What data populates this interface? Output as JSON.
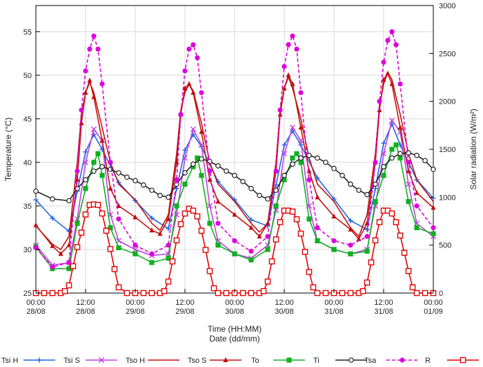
{
  "chart_data": {
    "type": "line",
    "title": "",
    "xlabel": "Time (HH:MM)",
    "xlabel2": "Date (dd/mm)",
    "ylabel": "Temperature (°C)",
    "y2label": "Solar radiation (W/m²)",
    "ylim": [
      25,
      58
    ],
    "y2lim": [
      0,
      3000
    ],
    "xlim": [
      0,
      96
    ],
    "yticks": [
      "25",
      "30",
      "35",
      "40",
      "45",
      "50",
      "55"
    ],
    "y2ticks": [
      "0",
      "500",
      "1000",
      "1500",
      "2000",
      "2500",
      "3000"
    ],
    "xticks": [
      {
        "time": "00:00",
        "date": "28/08"
      },
      {
        "time": "12:00",
        "date": "28/08"
      },
      {
        "time": "00:00",
        "date": "29/08"
      },
      {
        "time": "12:00",
        "date": "29/08"
      },
      {
        "time": "00:00",
        "date": "30/08"
      },
      {
        "time": "12:00",
        "date": "30/08"
      },
      {
        "time": "00:00",
        "date": "31/08"
      },
      {
        "time": "12:00",
        "date": "31/08"
      },
      {
        "time": "00:00",
        "date": "01/09"
      }
    ],
    "legend_position": "bottom",
    "series": [
      {
        "name": "Tsi H",
        "color": "#1e64e6",
        "marker": "plus",
        "axis": "left",
        "x": [
          0,
          4,
          8,
          10,
          12,
          14,
          16,
          20,
          24,
          28,
          32,
          34,
          36,
          38,
          40,
          44,
          48,
          52,
          56,
          58,
          60,
          62,
          64,
          68,
          72,
          76,
          80,
          82,
          84,
          86,
          88,
          92,
          96
        ],
        "y": [
          35.7,
          33.6,
          32.1,
          36.7,
          41.2,
          43.2,
          41.5,
          37.7,
          35.6,
          33.6,
          32.4,
          37.0,
          41.4,
          43.2,
          41.8,
          37.8,
          35.7,
          33.4,
          32.7,
          37.4,
          42.0,
          43.6,
          42.0,
          38.2,
          35.8,
          33.3,
          32.3,
          37.0,
          42.2,
          44.4,
          42.0,
          38.0,
          35.9
        ]
      },
      {
        "name": "Tsi S",
        "color": "#c040e0",
        "marker": "x",
        "axis": "left",
        "x": [
          0,
          4,
          8,
          10,
          12,
          14,
          16,
          18,
          20,
          24,
          28,
          32,
          34,
          36,
          38,
          40,
          42,
          44,
          48,
          52,
          56,
          58,
          60,
          62,
          64,
          66,
          68,
          72,
          76,
          80,
          82,
          84,
          86,
          88,
          90,
          92,
          96
        ],
        "y": [
          30.5,
          28.2,
          28.5,
          33.5,
          40.0,
          43.8,
          42.5,
          34.0,
          31.0,
          30.0,
          29.3,
          29.5,
          34.0,
          40.5,
          43.8,
          42.0,
          35.0,
          31.0,
          29.5,
          29.0,
          30.5,
          34.5,
          41.0,
          44.0,
          42.5,
          35.0,
          31.0,
          30.0,
          29.5,
          30.0,
          35.0,
          41.0,
          44.8,
          43.5,
          37.5,
          33.0,
          31.5
        ]
      },
      {
        "name": "Tso H",
        "color": "#c01010",
        "marker": "none",
        "axis": "left",
        "x": [
          0,
          4,
          6,
          8,
          10,
          11,
          12,
          13,
          14,
          16,
          18,
          20,
          24,
          28,
          30,
          32,
          34,
          35,
          36,
          37,
          38,
          40,
          42,
          44,
          48,
          52,
          54,
          56,
          58,
          59,
          60,
          61,
          62,
          64,
          66,
          68,
          72,
          76,
          78,
          80,
          82,
          83,
          84,
          85,
          86,
          88,
          90,
          92,
          96
        ],
        "y": [
          32.7,
          30.6,
          30.0,
          31.5,
          40.0,
          45.5,
          48.0,
          49.2,
          48.0,
          44.0,
          40.0,
          37.5,
          35.7,
          33.0,
          32.2,
          34.0,
          41.0,
          46.0,
          48.0,
          49.0,
          48.2,
          44.5,
          40.0,
          37.5,
          35.5,
          33.0,
          32.0,
          33.0,
          40.0,
          46.0,
          48.5,
          49.8,
          48.5,
          45.0,
          40.5,
          37.5,
          35.5,
          32.5,
          31.5,
          34.0,
          41.0,
          46.5,
          49.0,
          50.3,
          49.5,
          45.5,
          41.0,
          38.0,
          35.5
        ]
      },
      {
        "name": "Tso S",
        "color": "#c01010",
        "marker": "triangle",
        "axis": "left",
        "x": [
          0,
          4,
          6,
          8,
          10,
          11,
          12,
          13,
          14,
          16,
          18,
          20,
          24,
          28,
          30,
          32,
          34,
          35,
          36,
          37,
          38,
          40,
          42,
          44,
          48,
          52,
          54,
          56,
          58,
          59,
          60,
          61,
          62,
          64,
          66,
          68,
          72,
          76,
          78,
          80,
          82,
          83,
          84,
          85,
          86,
          88,
          90,
          92,
          96
        ],
        "y": [
          32.8,
          30.4,
          29.5,
          30.5,
          38.0,
          44.5,
          48.0,
          49.4,
          47.5,
          42.5,
          37.0,
          35.0,
          33.7,
          32.2,
          31.8,
          33.5,
          40.0,
          45.5,
          48.5,
          49.0,
          48.0,
          43.5,
          38.0,
          35.5,
          34.0,
          32.5,
          31.5,
          33.0,
          39.0,
          45.5,
          48.5,
          50.0,
          49.0,
          44.0,
          39.0,
          36.0,
          33.8,
          32.3,
          31.2,
          33.0,
          40.0,
          46.0,
          49.5,
          50.2,
          49.0,
          44.0,
          39.0,
          36.5,
          34.8
        ]
      },
      {
        "name": "To",
        "color": "#10b020",
        "marker": "square",
        "axis": "left",
        "x": [
          0,
          4,
          8,
          10,
          12,
          14,
          15,
          16,
          18,
          20,
          24,
          28,
          32,
          34,
          36,
          38,
          39,
          40,
          42,
          44,
          48,
          52,
          56,
          58,
          60,
          62,
          63,
          64,
          66,
          68,
          72,
          76,
          80,
          82,
          84,
          86,
          87,
          88,
          90,
          92,
          96
        ],
        "y": [
          30.3,
          27.8,
          27.8,
          33.0,
          37.0,
          40.0,
          41.0,
          38.5,
          32.5,
          30.2,
          29.5,
          28.5,
          29.0,
          35.0,
          37.5,
          39.5,
          40.5,
          38.5,
          33.0,
          30.5,
          29.5,
          28.8,
          30.0,
          35.0,
          38.0,
          40.5,
          41.0,
          40.0,
          33.5,
          31.0,
          30.0,
          29.5,
          29.8,
          35.5,
          38.5,
          41.5,
          42.0,
          40.5,
          35.5,
          32.5,
          31.8
        ]
      },
      {
        "name": "Ti",
        "color": "#222222",
        "marker": "circle-open",
        "axis": "left",
        "x": [
          0,
          4,
          8,
          10,
          12,
          14,
          16,
          18,
          20,
          22,
          24,
          26,
          28,
          30,
          32,
          34,
          36,
          38,
          40,
          42,
          44,
          46,
          48,
          50,
          52,
          54,
          56,
          58,
          60,
          62,
          64,
          66,
          68,
          70,
          72,
          74,
          76,
          78,
          80,
          82,
          84,
          86,
          88,
          90,
          92,
          94,
          96
        ],
        "y": [
          36.7,
          35.8,
          35.6,
          37.0,
          38.0,
          39.0,
          39.5,
          39.2,
          38.8,
          38.3,
          37.9,
          37.4,
          36.8,
          36.2,
          36.0,
          37.5,
          38.8,
          39.8,
          40.4,
          40.1,
          39.6,
          39.0,
          38.5,
          37.8,
          37.0,
          36.2,
          35.8,
          36.8,
          38.5,
          39.8,
          40.5,
          40.8,
          40.5,
          40.0,
          39.3,
          38.5,
          37.5,
          36.8,
          36.3,
          37.5,
          39.5,
          40.5,
          41.0,
          41.1,
          40.8,
          40.2,
          39.2
        ]
      },
      {
        "name": "Tsa",
        "color": "#dd00dd",
        "marker": "circle",
        "axis": "left",
        "x": [
          0,
          4,
          8,
          10,
          11,
          12,
          13,
          14,
          15,
          16,
          18,
          20,
          24,
          28,
          32,
          34,
          35,
          36,
          37,
          38,
          39,
          40,
          42,
          44,
          48,
          52,
          56,
          58,
          59,
          60,
          61,
          62,
          63,
          64,
          66,
          68,
          72,
          76,
          80,
          82,
          83,
          84,
          85,
          86,
          87,
          88,
          90,
          92,
          96
        ],
        "y": [
          30.2,
          28.0,
          28.5,
          39.0,
          46.0,
          50.5,
          53.0,
          54.5,
          53.0,
          49.0,
          40.0,
          33.5,
          30.5,
          29.5,
          30.5,
          38.0,
          45.5,
          50.5,
          53.0,
          53.5,
          52.0,
          48.0,
          39.0,
          33.0,
          31.0,
          29.8,
          31.5,
          39.0,
          46.0,
          51.0,
          53.5,
          54.5,
          53.0,
          48.0,
          38.0,
          32.5,
          31.0,
          30.5,
          31.5,
          40.0,
          47.0,
          51.5,
          54.0,
          55.0,
          53.5,
          49.0,
          40.0,
          35.0,
          32.5
        ]
      },
      {
        "name": "R",
        "color": "#e00000",
        "marker": "square-open",
        "axis": "right",
        "x": [
          0,
          2,
          4,
          6,
          7,
          8,
          9,
          10,
          11,
          12,
          13,
          14,
          15,
          16,
          17,
          18,
          19,
          20,
          22,
          24,
          26,
          28,
          30,
          31,
          32,
          33,
          34,
          35,
          36,
          37,
          38,
          39,
          40,
          41,
          42,
          43,
          44,
          46,
          48,
          50,
          52,
          54,
          55,
          56,
          57,
          58,
          59,
          60,
          61,
          62,
          63,
          64,
          65,
          66,
          67,
          68,
          70,
          72,
          74,
          76,
          78,
          79,
          80,
          81,
          82,
          83,
          84,
          85,
          86,
          87,
          88,
          89,
          90,
          91,
          92,
          94,
          96
        ],
        "y": [
          0,
          0,
          0,
          0,
          20,
          80,
          280,
          480,
          630,
          820,
          920,
          925,
          920,
          830,
          650,
          460,
          250,
          60,
          0,
          0,
          0,
          0,
          0,
          20,
          120,
          330,
          550,
          720,
          830,
          880,
          860,
          800,
          650,
          450,
          230,
          50,
          0,
          0,
          0,
          0,
          0,
          0,
          20,
          120,
          330,
          560,
          740,
          860,
          860,
          850,
          770,
          620,
          430,
          220,
          60,
          0,
          0,
          0,
          0,
          0,
          0,
          20,
          110,
          320,
          550,
          740,
          860,
          860,
          830,
          740,
          600,
          420,
          230,
          60,
          0,
          0,
          0
        ]
      }
    ]
  }
}
